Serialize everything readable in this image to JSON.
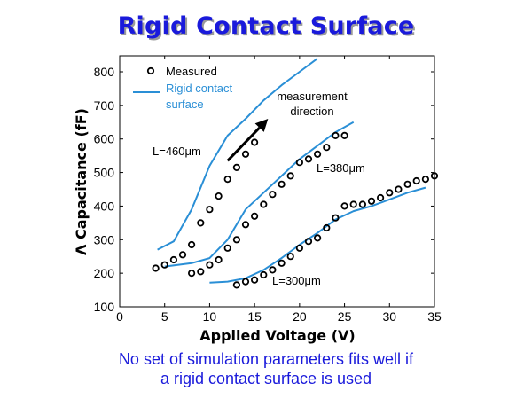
{
  "slide": {
    "title": "Rigid Contact Surface",
    "caption_line1": "No set of simulation parameters fits well if",
    "caption_line2": "a rigid contact surface is used"
  },
  "chart_data": {
    "type": "scatter",
    "xlabel": "Applied Voltage (V)",
    "ylabel": "Λ Capacitance (fF)",
    "xlim": [
      0,
      35
    ],
    "ylim": [
      100,
      850
    ],
    "xticks": [
      "0",
      "5",
      "10",
      "15",
      "20",
      "25",
      "30",
      "35"
    ],
    "xtick_values": [
      0,
      5,
      10,
      15,
      20,
      25,
      30,
      35
    ],
    "yticks": [
      "100",
      "200",
      "300",
      "400",
      "500",
      "600",
      "700",
      "800"
    ],
    "ytick_values": [
      100,
      200,
      300,
      400,
      500,
      600,
      700,
      800
    ],
    "grid": false,
    "legend": {
      "placement": "top-left",
      "measured_label": "Measured",
      "sim_label_line1": "Rigid contact",
      "sim_label_line2": "surface"
    },
    "colors": {
      "measured": "#000000",
      "simulation": "#2a8fd6",
      "arrow": "#000000"
    },
    "annotations": {
      "direction_line1": "measurement",
      "direction_line2": "direction",
      "L460": "L=460μm",
      "L380": "L=380μm",
      "L300": "L=300μm"
    },
    "direction_arrow": {
      "from": [
        12,
        535
      ],
      "to": [
        16.5,
        660
      ]
    },
    "series": [
      {
        "name": "L=460μm",
        "measured": [
          [
            4,
            215
          ],
          [
            5,
            225
          ],
          [
            6,
            240
          ],
          [
            7,
            255
          ],
          [
            8,
            285
          ],
          [
            9,
            350
          ],
          [
            10,
            390
          ],
          [
            11,
            430
          ],
          [
            12,
            480
          ],
          [
            13,
            515
          ],
          [
            14,
            555
          ],
          [
            15,
            590
          ]
        ],
        "simulation": [
          [
            4.2,
            270
          ],
          [
            6,
            295
          ],
          [
            8,
            390
          ],
          [
            10,
            520
          ],
          [
            12,
            610
          ],
          [
            14,
            660
          ],
          [
            16,
            715
          ],
          [
            18,
            760
          ],
          [
            20,
            800
          ],
          [
            22,
            840
          ]
        ]
      },
      {
        "name": "L=380μm",
        "measured": [
          [
            8,
            200
          ],
          [
            9,
            205
          ],
          [
            10,
            225
          ],
          [
            11,
            240
          ],
          [
            12,
            275
          ],
          [
            13,
            300
          ],
          [
            14,
            345
          ],
          [
            15,
            370
          ],
          [
            16,
            405
          ],
          [
            17,
            435
          ],
          [
            18,
            465
          ],
          [
            19,
            490
          ],
          [
            20,
            530
          ],
          [
            21,
            540
          ],
          [
            22,
            555
          ],
          [
            23,
            575
          ],
          [
            24,
            610
          ],
          [
            25,
            610
          ]
        ],
        "simulation": [
          [
            5,
            220
          ],
          [
            8,
            230
          ],
          [
            10,
            245
          ],
          [
            12,
            300
          ],
          [
            14,
            390
          ],
          [
            16,
            440
          ],
          [
            18,
            490
          ],
          [
            20,
            540
          ],
          [
            22,
            580
          ],
          [
            24,
            620
          ],
          [
            26,
            650
          ]
        ]
      },
      {
        "name": "L=300μm",
        "measured": [
          [
            13,
            165
          ],
          [
            14,
            175
          ],
          [
            15,
            180
          ],
          [
            16,
            195
          ],
          [
            17,
            210
          ],
          [
            18,
            230
          ],
          [
            19,
            250
          ],
          [
            20,
            275
          ],
          [
            21,
            295
          ],
          [
            22,
            305
          ],
          [
            23,
            335
          ],
          [
            24,
            365
          ],
          [
            25,
            400
          ],
          [
            26,
            405
          ],
          [
            27,
            405
          ],
          [
            28,
            415
          ],
          [
            29,
            425
          ],
          [
            30,
            440
          ],
          [
            31,
            450
          ],
          [
            32,
            465
          ],
          [
            33,
            475
          ],
          [
            34,
            480
          ],
          [
            35,
            490
          ]
        ],
        "simulation": [
          [
            10,
            172
          ],
          [
            12,
            175
          ],
          [
            14,
            185
          ],
          [
            16,
            210
          ],
          [
            18,
            245
          ],
          [
            20,
            285
          ],
          [
            22,
            320
          ],
          [
            24,
            360
          ],
          [
            26,
            385
          ],
          [
            28,
            400
          ],
          [
            30,
            420
          ],
          [
            32,
            440
          ],
          [
            34,
            455
          ]
        ]
      }
    ]
  }
}
